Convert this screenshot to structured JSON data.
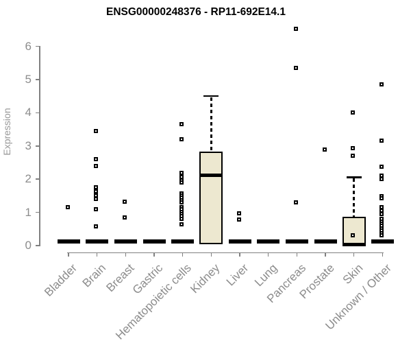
{
  "chart_data": {
    "type": "boxplot",
    "title": "ENSG00000248376 - RP11-692E14.1",
    "ylabel": "Expression",
    "xlabel": "",
    "yticks": [
      0,
      1,
      2,
      3,
      4,
      5,
      6
    ],
    "ylim": [
      0,
      6.6
    ],
    "grid": false,
    "legend": null,
    "box_fill": "#ede8d0",
    "box_stroke": "#000000",
    "axis_color": "#808080",
    "tick_label_color": "#8c8c8c",
    "title_color": "#000000",
    "categories": [
      "Bladder",
      "Brain",
      "Breast",
      "Gastric",
      "Hematopoietic cells",
      "Kidney",
      "Liver",
      "Lung",
      "Pancreas",
      "Prostate",
      "Skin",
      "Unknown / Other"
    ],
    "series": [
      {
        "category": "Bladder",
        "q1": 0,
        "median": 0,
        "q3": 0.05,
        "whisker_low": 0,
        "whisker_high": 0.05,
        "outliers": [
          1.15
        ]
      },
      {
        "category": "Brain",
        "q1": 0,
        "median": 0,
        "q3": 0.05,
        "whisker_low": 0,
        "whisker_high": 0.05,
        "outliers": [
          3.45,
          2.6,
          2.4,
          1.75,
          1.63,
          1.51,
          1.4,
          1.1,
          0.57
        ]
      },
      {
        "category": "Breast",
        "q1": 0,
        "median": 0,
        "q3": 0.05,
        "whisker_low": 0,
        "whisker_high": 0.05,
        "outliers": [
          1.33,
          0.85
        ]
      },
      {
        "category": "Gastric",
        "q1": 0,
        "median": 0,
        "q3": 0.05,
        "whisker_low": 0,
        "whisker_high": 0.05,
        "outliers": []
      },
      {
        "category": "Hematopoietic cells",
        "q1": 0,
        "median": 0,
        "q3": 0.05,
        "whisker_low": 0,
        "whisker_high": 0.05,
        "outliers": [
          3.65,
          3.2,
          2.18,
          2.06,
          1.97,
          1.9,
          1.56,
          1.5,
          1.44,
          1.37,
          1.3,
          1.16,
          1.09,
          1.02,
          0.95,
          0.88,
          0.8,
          0.64
        ]
      },
      {
        "category": "Kidney",
        "q1": 0.02,
        "median": 2.12,
        "q3": 2.83,
        "whisker_low": 0,
        "whisker_high": 4.5,
        "outliers": []
      },
      {
        "category": "Liver",
        "q1": 0,
        "median": 0,
        "q3": 0.05,
        "whisker_low": 0,
        "whisker_high": 0.05,
        "outliers": [
          0.98,
          0.78
        ]
      },
      {
        "category": "Lung",
        "q1": 0,
        "median": 0,
        "q3": 0.05,
        "whisker_low": 0,
        "whisker_high": 0.05,
        "outliers": []
      },
      {
        "category": "Pancreas",
        "q1": 0,
        "median": 0,
        "q3": 0.05,
        "whisker_low": 0,
        "whisker_high": 0.05,
        "outliers": [
          6.52,
          5.35,
          1.3
        ]
      },
      {
        "category": "Prostate",
        "q1": 0,
        "median": 0,
        "q3": 0.05,
        "whisker_low": 0,
        "whisker_high": 0.05,
        "outliers": [
          2.9
        ]
      },
      {
        "category": "Skin",
        "q1": 0.02,
        "median": 0.04,
        "q3": 0.87,
        "whisker_low": 0,
        "whisker_high": 2.06,
        "outliers": [
          4.0,
          2.93,
          2.7,
          0.3
        ]
      },
      {
        "category": "Unknown / Other",
        "q1": 0,
        "median": 0,
        "q3": 0.05,
        "whisker_low": 0,
        "whisker_high": 0.05,
        "outliers": [
          4.85,
          3.17,
          2.37,
          2.1,
          2.0,
          1.48,
          1.42,
          1.16,
          1.05,
          0.95,
          0.8,
          0.73,
          0.66,
          0.59,
          0.52,
          0.45,
          0.38,
          0.31
        ]
      }
    ]
  }
}
